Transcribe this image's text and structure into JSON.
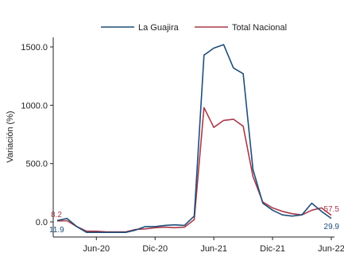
{
  "chart_data": {
    "type": "line",
    "title": "",
    "xlabel": "",
    "ylabel": "Variación (%)",
    "ylim": [
      -150,
      1600
    ],
    "yticks": [
      "0.0",
      "500.0",
      "1000.0",
      "1500.0"
    ],
    "xticks": [
      "Jun-20",
      "Dic-20",
      "Jun-21",
      "Dic-21",
      "Jun-22"
    ],
    "legend_position": "top",
    "grid": false,
    "x": [
      "Feb-20",
      "Mar-20",
      "Abr-20",
      "May-20",
      "Jun-20",
      "Jul-20",
      "Ago-20",
      "Sep-20",
      "Oct-20",
      "Nov-20",
      "Dic-20",
      "Ene-21",
      "Feb-21",
      "Mar-21",
      "Abr-21",
      "May-21",
      "Jun-21",
      "Jul-21",
      "Ago-21",
      "Sep-21",
      "Oct-21",
      "Nov-21",
      "Dic-21",
      "Ene-22",
      "Feb-22",
      "Mar-22",
      "Abr-22",
      "May-22",
      "Jun-22"
    ],
    "series": [
      {
        "name": "La Guajira",
        "color": "#1f4e79",
        "values": [
          11.9,
          30,
          -40,
          -90,
          -90,
          -90,
          -90,
          -90,
          -70,
          -40,
          -40,
          -30,
          -25,
          -30,
          50,
          1430,
          1490,
          1520,
          1320,
          1270,
          450,
          160,
          100,
          60,
          50,
          60,
          160,
          90,
          29.9
        ],
        "start_label": "11.9",
        "end_label": "29.9"
      },
      {
        "name": "Total Nacional",
        "color": "#a93a4a",
        "values": [
          8.2,
          10,
          -40,
          -80,
          -80,
          -85,
          -85,
          -85,
          -65,
          -60,
          -50,
          -45,
          -50,
          -45,
          20,
          980,
          810,
          870,
          880,
          820,
          390,
          170,
          120,
          90,
          70,
          60,
          100,
          120,
          57.5
        ],
        "start_label": "8.2",
        "end_label": "57.5"
      }
    ]
  }
}
